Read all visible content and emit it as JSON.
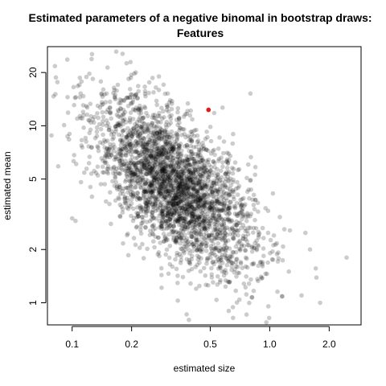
{
  "chart_data": {
    "type": "scatter",
    "title_lines": [
      "Estimated parameters of a negative binomal in bootstrap draws:",
      "Features"
    ],
    "xlabel": "estimated size",
    "ylabel": "estimated mean",
    "x_scale": "log",
    "y_scale": "log",
    "xlim": [
      0.075,
      2.9
    ],
    "ylim": [
      0.75,
      28
    ],
    "x_ticks": [
      {
        "value": 0.1,
        "label": "0.1"
      },
      {
        "value": 0.2,
        "label": "0.2"
      },
      {
        "value": 0.5,
        "label": "0.5"
      },
      {
        "value": 1.0,
        "label": "1.0"
      },
      {
        "value": 2.0,
        "label": "2.0"
      }
    ],
    "y_ticks": [
      {
        "value": 1,
        "label": "1"
      },
      {
        "value": 2,
        "label": "2"
      },
      {
        "value": 5,
        "label": "5"
      },
      {
        "value": 10,
        "label": "10"
      },
      {
        "value": 20,
        "label": "20"
      }
    ],
    "point_color": "#000000",
    "point_alpha": 0.2,
    "highlight_color": "#e31a1c",
    "highlight_point": {
      "x": 0.49,
      "y": 12.3
    },
    "cloud": {
      "n": 3000,
      "center_log10_x": -0.48,
      "center_log10_y": 0.66,
      "sd_log10_x": 0.2,
      "sd_log10_y": 0.24,
      "correlation": -0.62
    },
    "outlier_points": [
      {
        "x": 0.085,
        "y": 5.9
      },
      {
        "x": 0.097,
        "y": 9.0
      },
      {
        "x": 0.1,
        "y": 3.0
      },
      {
        "x": 0.104,
        "y": 2.9
      },
      {
        "x": 0.18,
        "y": 25.5
      },
      {
        "x": 2.45,
        "y": 1.8
      },
      {
        "x": 1.8,
        "y": 1.0
      },
      {
        "x": 1.45,
        "y": 1.1
      },
      {
        "x": 1.25,
        "y": 1.5
      },
      {
        "x": 0.62,
        "y": 0.9
      },
      {
        "x": 0.39,
        "y": 0.8
      },
      {
        "x": 0.38,
        "y": 0.86
      },
      {
        "x": 1.6,
        "y": 2.0
      },
      {
        "x": 1.05,
        "y": 2.4
      }
    ]
  }
}
